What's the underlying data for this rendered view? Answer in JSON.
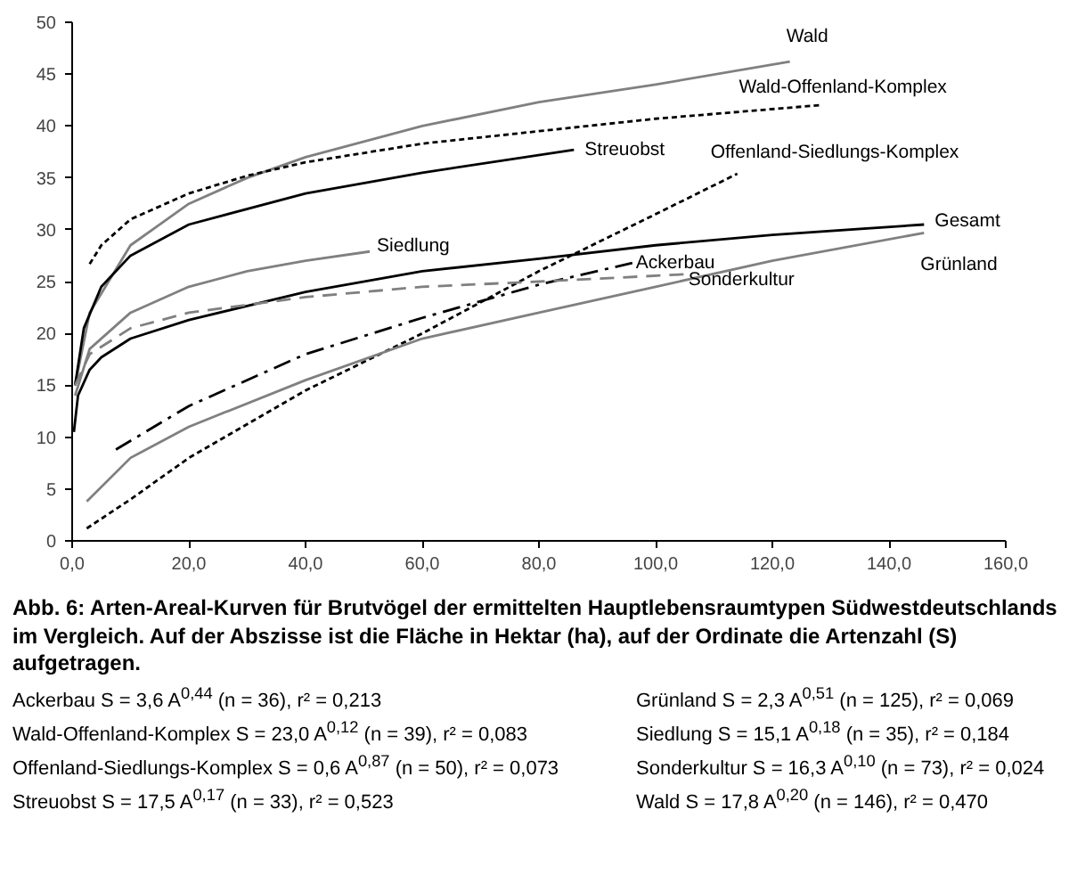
{
  "chart_data": {
    "type": "line",
    "title": "Abb. 6: Arten-Areal-Kurven für Brutvögel der ermittelten Hauptlebensraumtypen Südwestdeutschlands im Vergleich. Auf der Abszisse ist die Fläche in Hektar (ha), auf der Ordinate die Artenzahl (S) aufgetragen.",
    "annotations": [
      "Ackerbau S = 3,6 A$^{0,44}$ (n = 36), r² = 0,213",
      "Wald-Offenland-Komplex S = 23,0 A$^{0,12}$ (n = 39), r² = 0,083",
      "Offenland-Siedlungs-Komplex S = 0,6 A$^{0,87}$ (n = 50), r² = 0,073",
      "Streuobst S = 17,5 A$^{0,17}$ (n = 33), r² = 0,523",
      "Grünland S = 2,3 A$^{0,51}$ (n = 125), r² = 0,069",
      "Siedlung S = 15,1 A$^{0,18}$ (n = 35), r² = 0,184",
      "Sonderkultur S = 16,3 A$^{0,10}$ (n = 73), r² = 0,024",
      "Wald S = 17,8 A$^{0,20}$ (n = 146), r² = 0,470"
    ],
    "xlim": [
      0,
      160
    ],
    "ylim": [
      0,
      50
    ],
    "xticks": [
      {
        "value": 0,
        "label": "0,0"
      },
      {
        "value": 20,
        "label": "20,0"
      },
      {
        "value": 40,
        "label": "40,0"
      },
      {
        "value": 60,
        "label": "60,0"
      },
      {
        "value": 80,
        "label": "80,0"
      },
      {
        "value": 100,
        "label": "100,0"
      },
      {
        "value": 120,
        "label": "120,0"
      },
      {
        "value": 140,
        "label": "140,0"
      },
      {
        "value": 160,
        "label": "160,0"
      }
    ],
    "yticks": [
      0,
      5,
      10,
      15,
      20,
      25,
      30,
      35,
      40,
      45,
      50
    ],
    "grid": false,
    "legend": false,
    "marker": "none",
    "series": [
      {
        "name": "Wald",
        "color": "#808080",
        "line_style": "solid",
        "x": [
          0.5,
          3,
          10,
          20,
          30,
          40,
          60,
          80,
          100,
          123
        ],
        "values": [
          15,
          22,
          28.5,
          32.5,
          35,
          37,
          40,
          42.3,
          44,
          46.2
        ]
      },
      {
        "name": "Wald-Offenland-Komplex",
        "color": "#000000",
        "line_style": "dotted",
        "x": [
          3,
          5,
          10,
          20,
          30,
          40,
          60,
          80,
          100,
          128
        ],
        "values": [
          26.7,
          28.5,
          31,
          33.5,
          35.2,
          36.5,
          38.3,
          39.5,
          40.7,
          42
        ]
      },
      {
        "name": "Streuobst",
        "color": "#000000",
        "line_style": "solid",
        "x": [
          0.5,
          2,
          5,
          10,
          20,
          40,
          60,
          86
        ],
        "values": [
          15,
          20.5,
          24.5,
          27.5,
          30.5,
          33.5,
          35.5,
          37.7
        ]
      },
      {
        "name": "Offenland-Siedlungs-Komplex",
        "color": "#000000",
        "line_style": "dotted",
        "x": [
          2.5,
          10,
          20,
          40,
          60,
          80,
          100,
          114
        ],
        "values": [
          1.2,
          4,
          8,
          14.5,
          20,
          26,
          31.5,
          35.4
        ]
      },
      {
        "name": "Gesamt",
        "color": "#000000",
        "line_style": "solid",
        "x": [
          0.3,
          1,
          3,
          5,
          10,
          20,
          40,
          60,
          80,
          100,
          120,
          146
        ],
        "values": [
          10.5,
          14,
          16.5,
          17.7,
          19.5,
          21.3,
          24,
          26,
          27.2,
          28.5,
          29.5,
          30.5
        ]
      },
      {
        "name": "Grünland",
        "color": "#808080",
        "line_style": "solid",
        "x": [
          2.5,
          10,
          20,
          40,
          60,
          80,
          100,
          120,
          146
        ],
        "values": [
          3.8,
          8,
          11,
          15.5,
          19.5,
          22,
          24.5,
          27,
          29.7
        ]
      },
      {
        "name": "Siedlung",
        "color": "#808080",
        "line_style": "solid",
        "x": [
          0.5,
          3,
          10,
          20,
          30,
          40,
          51
        ],
        "values": [
          14,
          18.5,
          22,
          24.5,
          26,
          27,
          27.9
        ]
      },
      {
        "name": "Ackerbau",
        "color": "#000000",
        "line_style": "dashdot",
        "x": [
          7.5,
          20,
          40,
          60,
          80,
          96
        ],
        "values": [
          8.8,
          13,
          18,
          21.5,
          24.7,
          26.8
        ]
      },
      {
        "name": "Sonderkultur",
        "color": "#808080",
        "line_style": "dashed",
        "x": [
          0.5,
          3,
          10,
          20,
          40,
          60,
          80,
          105
        ],
        "values": [
          15,
          18,
          20.5,
          22,
          23.5,
          24.5,
          25,
          25.7
        ]
      }
    ]
  }
}
